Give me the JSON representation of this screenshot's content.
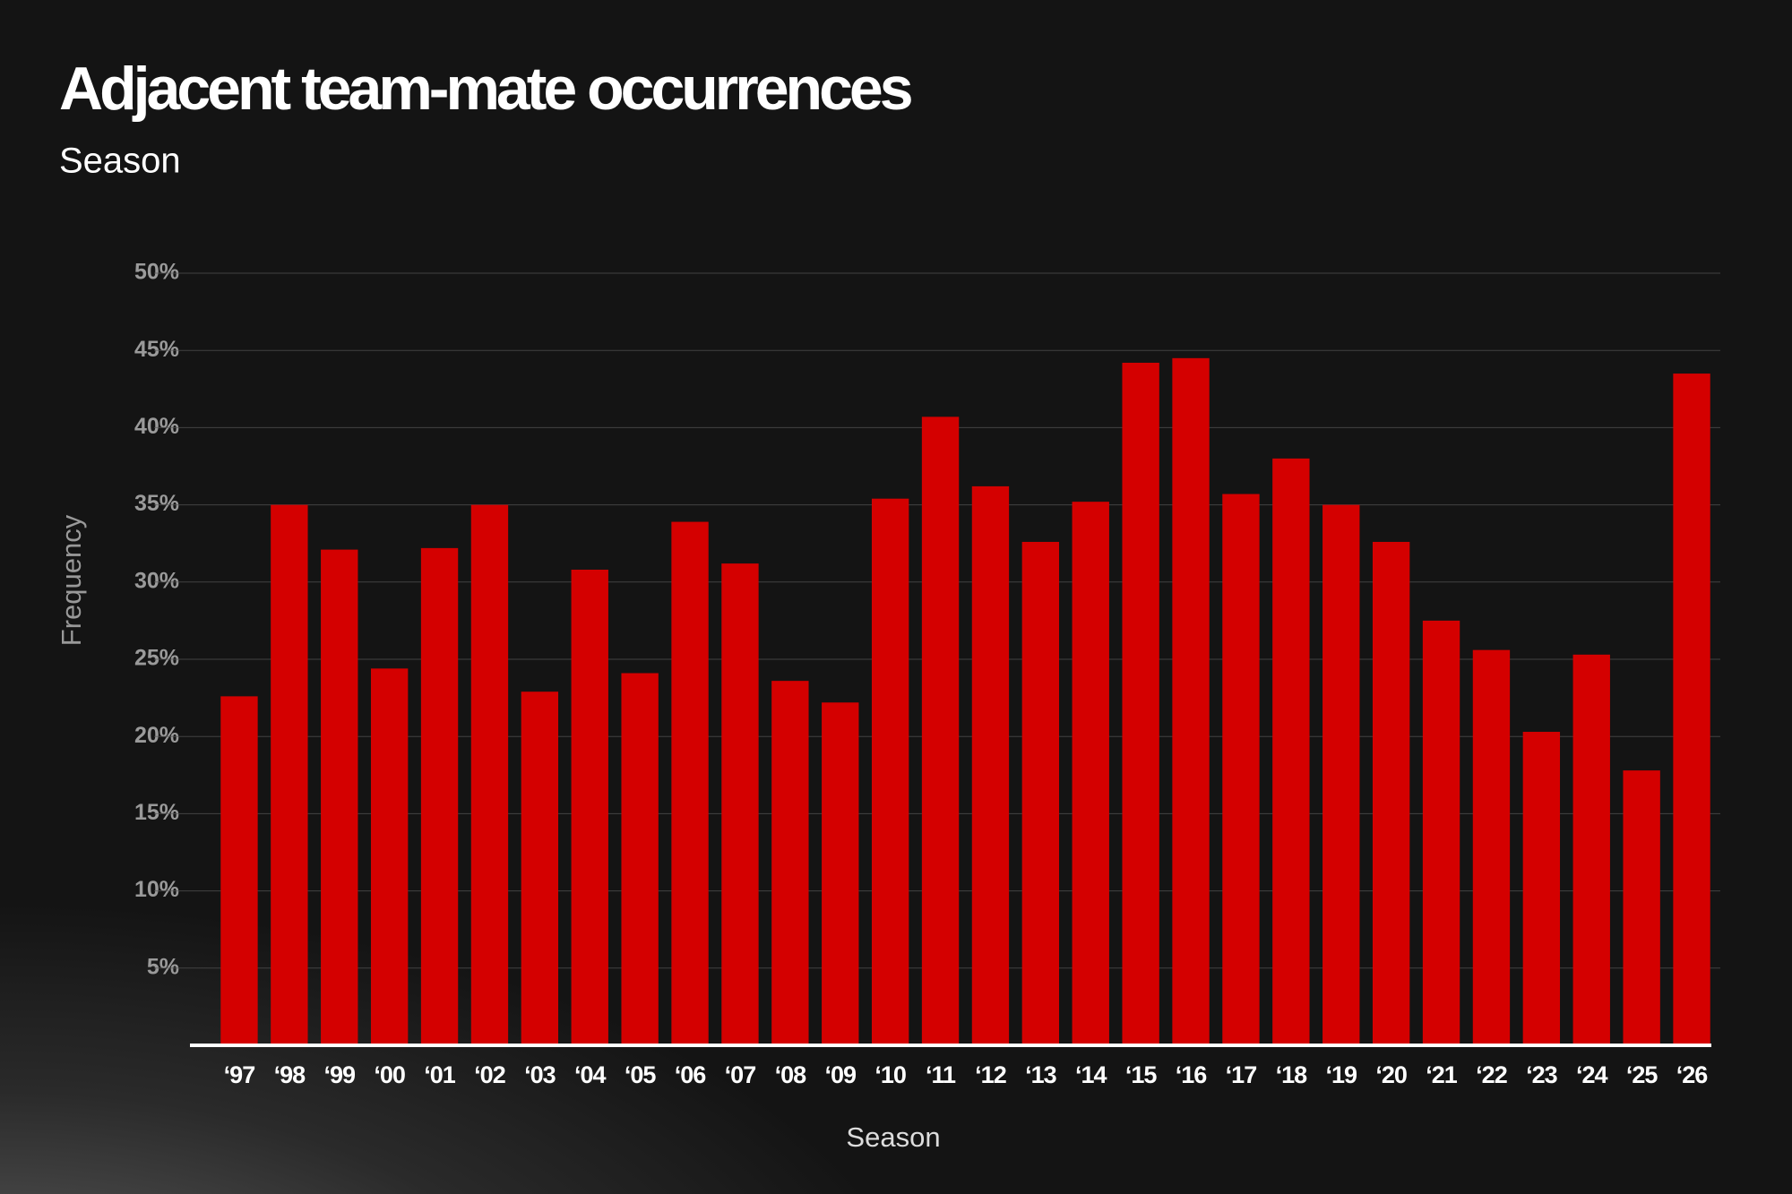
{
  "chart_data": {
    "type": "bar",
    "title": "Adjacent team-mate occurrences",
    "subtitle": "Season",
    "x_label": "Season",
    "y_label": "Frequency",
    "categories": [
      "‘97",
      "‘98",
      "‘99",
      "‘00",
      "‘01",
      "‘02",
      "‘03",
      "‘04",
      "‘05",
      "‘06",
      "‘07",
      "‘08",
      "‘09",
      "‘10",
      "‘11",
      "‘12",
      "‘13",
      "‘14",
      "‘15",
      "‘16",
      "‘17",
      "‘18",
      "‘19",
      "‘20",
      "‘21",
      "‘22",
      "‘23",
      "‘24",
      "‘25",
      "‘26"
    ],
    "values": [
      22.6,
      35.0,
      32.1,
      24.4,
      32.2,
      35.0,
      22.9,
      30.8,
      24.1,
      33.9,
      31.2,
      23.6,
      22.2,
      35.4,
      40.7,
      36.2,
      32.6,
      35.2,
      44.2,
      44.5,
      35.7,
      38.0,
      35.0,
      32.6,
      27.5,
      25.6,
      20.3,
      25.3,
      17.8,
      43.5
    ],
    "color": "#d40000",
    "ylim": [
      0,
      50
    ],
    "yticks": [
      {
        "value": 5,
        "label": "5%"
      },
      {
        "value": 10,
        "label": "10%"
      },
      {
        "value": 15,
        "label": "15%"
      },
      {
        "value": 20,
        "label": "20%"
      },
      {
        "value": 25,
        "label": "25%"
      },
      {
        "value": 30,
        "label": "30%"
      },
      {
        "value": 35,
        "label": "35%"
      },
      {
        "value": 40,
        "label": "40%"
      },
      {
        "value": 45,
        "label": "45%"
      },
      {
        "value": 50,
        "label": "50%"
      }
    ],
    "grid": true
  }
}
